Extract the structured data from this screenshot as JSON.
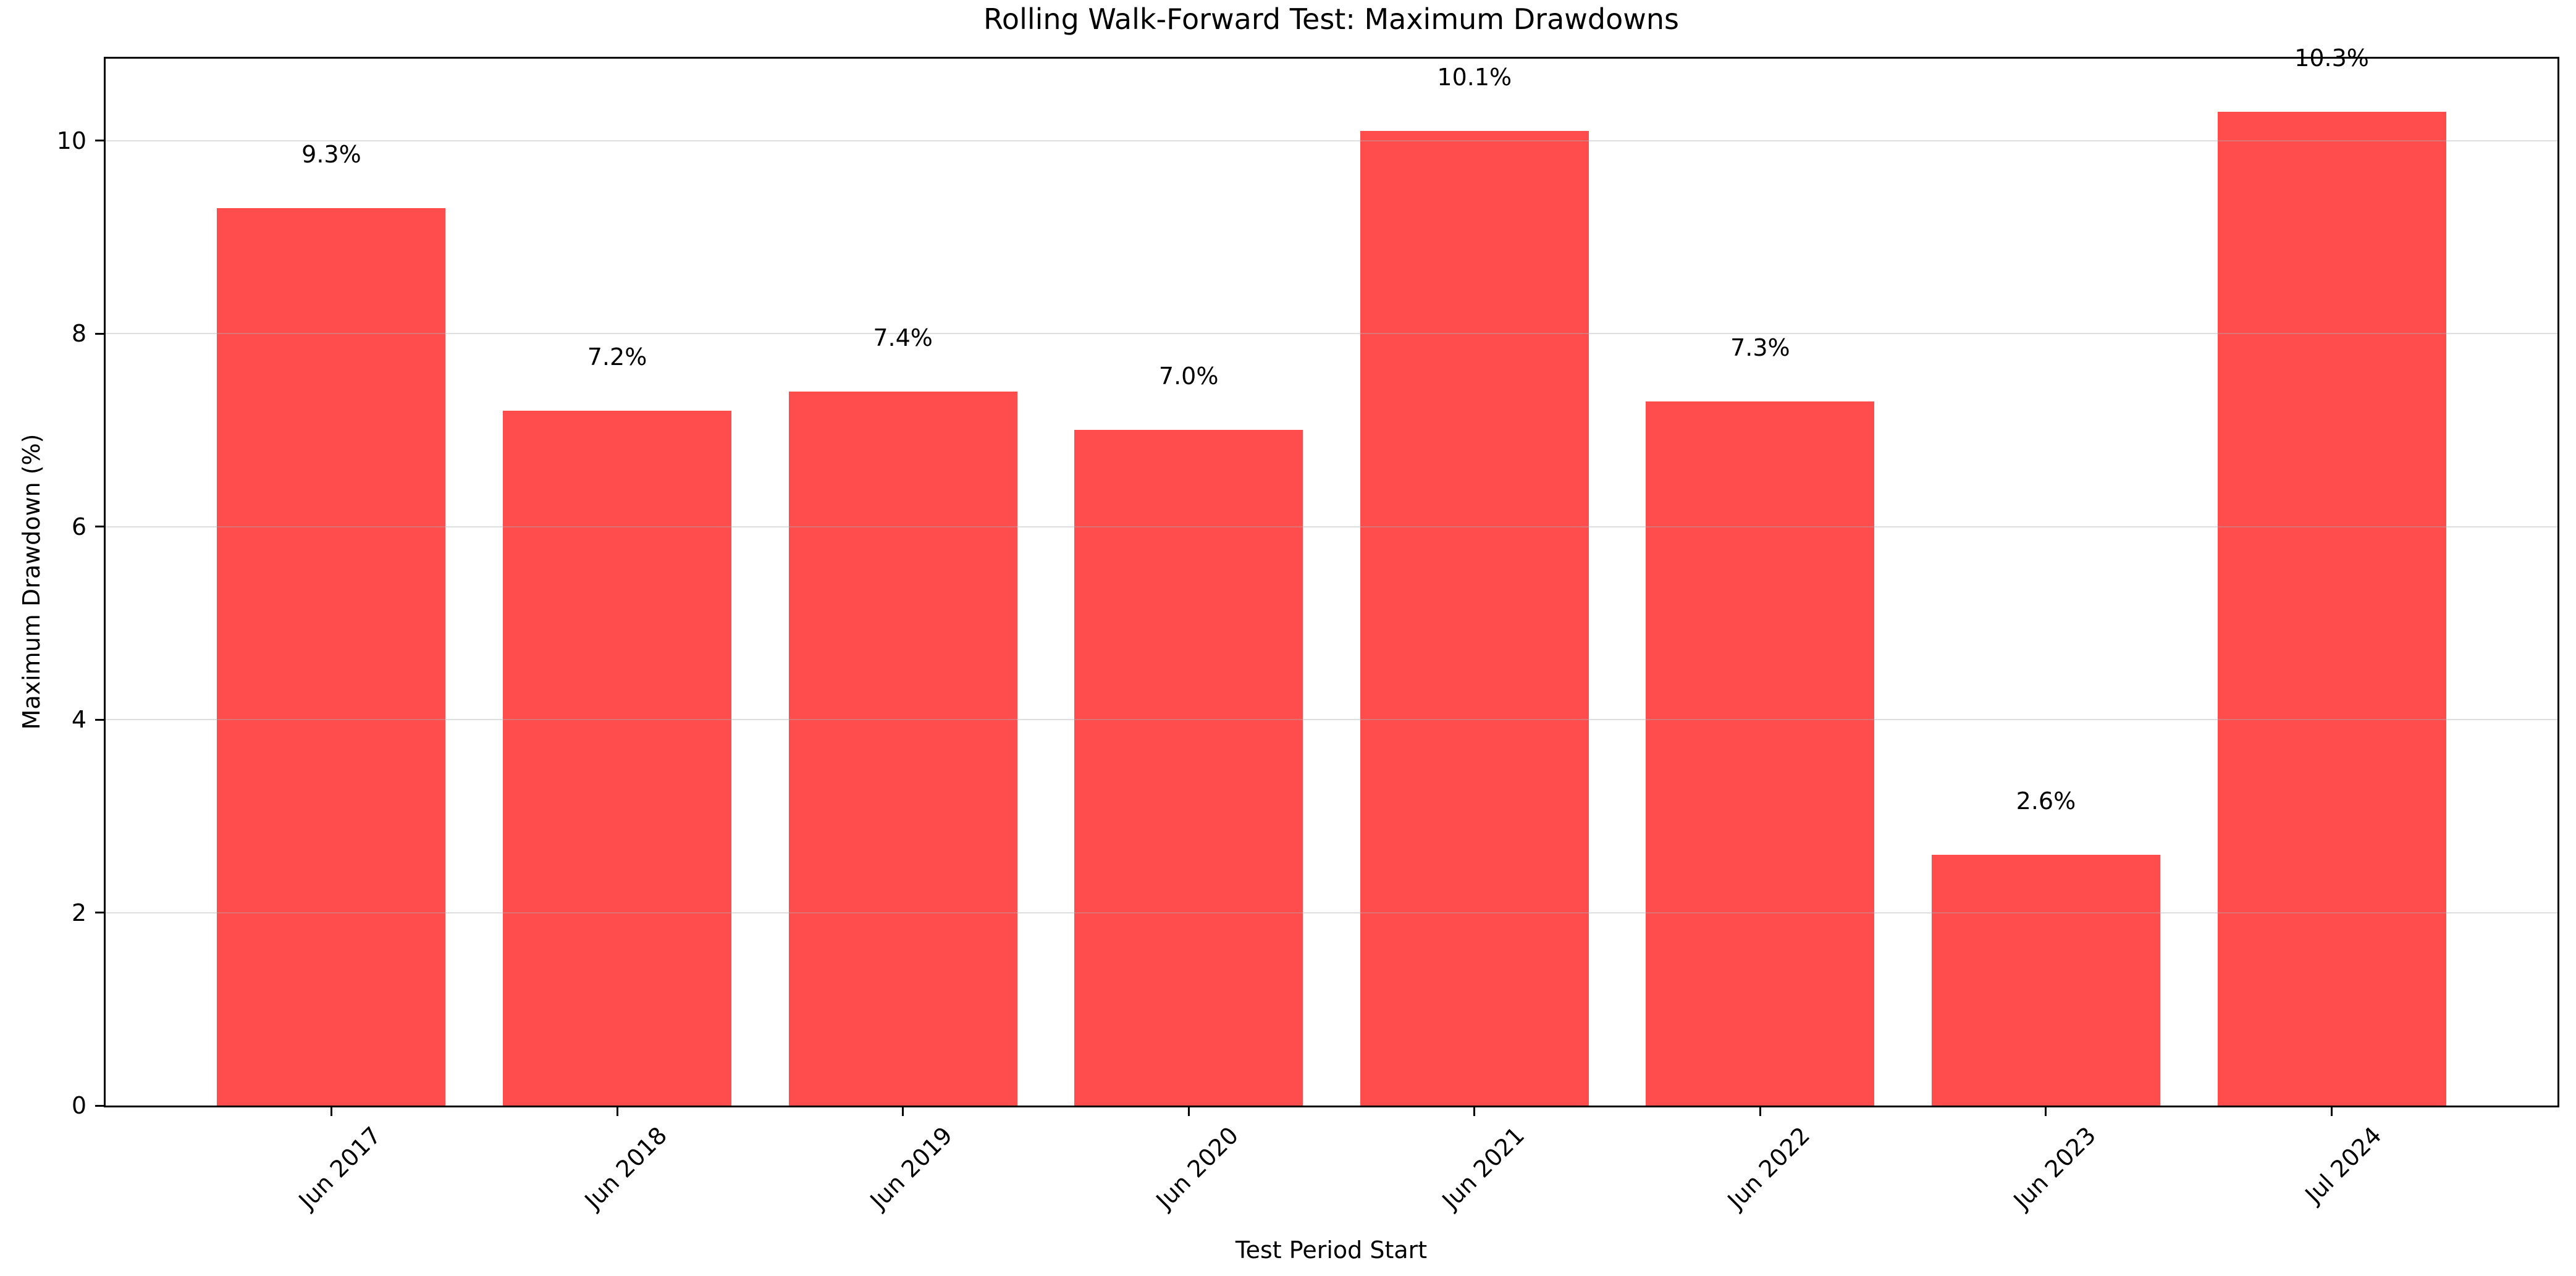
{
  "figure": {
    "title": "Rolling Walk-Forward Test: Maximum Drawdowns",
    "background": "#ffffff"
  },
  "chart_data": {
    "type": "bar",
    "title": "Rolling Walk-Forward Test: Maximum Drawdowns",
    "xlabel": "Test Period Start",
    "ylabel": "Maximum Drawdown (%)",
    "categories": [
      "Jun 2017",
      "Jun 2018",
      "Jun 2019",
      "Jun 2020",
      "Jun 2021",
      "Jun 2022",
      "Jun 2023",
      "Jul 2024"
    ],
    "values": [
      9.3,
      7.2,
      7.4,
      7.0,
      10.1,
      7.3,
      2.6,
      10.3
    ],
    "bar_labels": [
      "9.3%",
      "7.2%",
      "7.4%",
      "7.0%",
      "10.1%",
      "7.3%",
      "2.6%",
      "10.3%"
    ],
    "y_ticks": [
      0,
      2,
      4,
      6,
      8,
      10
    ],
    "y_tick_labels": [
      "0",
      "2",
      "4",
      "6",
      "8",
      "10"
    ],
    "ylim": [
      0,
      10.85
    ],
    "xlim": [
      -0.79,
      7.79
    ],
    "bar_width_units": 0.8,
    "grid": true,
    "grid_axis": "y",
    "legend": "none",
    "colors": {
      "bar": "#ff4c4c",
      "grid": "#b0b0b0",
      "grid_alpha": 0.4,
      "axis": "#000000",
      "text": "#000000",
      "background": "#ffffff"
    }
  }
}
